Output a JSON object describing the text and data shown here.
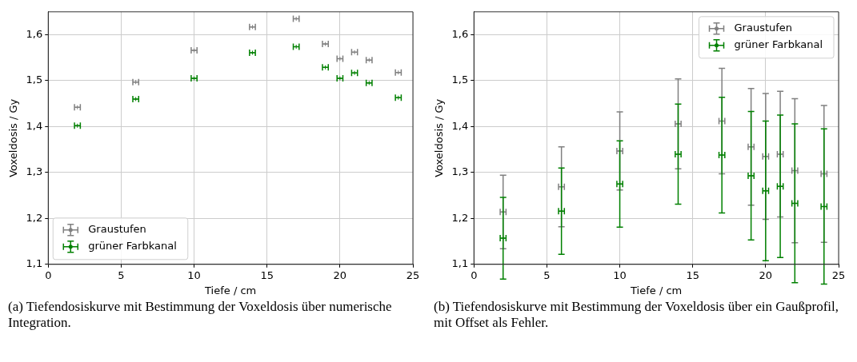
{
  "chart_data": [
    {
      "type": "scatter",
      "xlabel": "Tiefe / cm",
      "ylabel": "Voxeldosis / Gy",
      "x": [
        2,
        6,
        10,
        14,
        17,
        19,
        20,
        21,
        22,
        24
      ],
      "series": [
        {
          "name": "Graustufen",
          "color": "#808080",
          "values": [
            1.442,
            1.497,
            1.566,
            1.617,
            1.635,
            1.58,
            1.548,
            1.562,
            1.545,
            1.518
          ],
          "xerrors": [
            0.2,
            0.2,
            0.2,
            0.2,
            0.2,
            0.2,
            0.2,
            0.2,
            0.2,
            0.2
          ]
        },
        {
          "name": "grüner Farbkanal",
          "color": "#008000",
          "values": [
            1.402,
            1.46,
            1.505,
            1.561,
            1.574,
            1.529,
            1.505,
            1.517,
            1.495,
            1.463
          ],
          "xerrors": [
            0.2,
            0.2,
            0.2,
            0.2,
            0.2,
            0.2,
            0.2,
            0.2,
            0.2,
            0.2
          ]
        }
      ],
      "xlim": [
        0,
        25
      ],
      "xticks": [
        0,
        5,
        10,
        15,
        20,
        25
      ],
      "ylim": [
        1.1,
        1.65
      ],
      "yticks": [
        {
          "value": 1.1,
          "label": "1,1"
        },
        {
          "value": 1.2,
          "label": "1,2"
        },
        {
          "value": 1.3,
          "label": "1,3"
        },
        {
          "value": 1.4,
          "label": "1,4"
        },
        {
          "value": 1.5,
          "label": "1,5"
        },
        {
          "value": 1.6,
          "label": "1,6"
        }
      ],
      "grid": true,
      "legend": "bottom left",
      "marker": "cross",
      "annotations": [
        "(a) Tiefendosiskurve mit Bestimmung der Voxeldosis über numerische Integration."
      ]
    },
    {
      "type": "scatter",
      "xlabel": "Tiefe / cm",
      "ylabel": "Voxeldosis / Gy",
      "x": [
        2,
        6,
        10,
        14,
        17,
        19,
        20,
        21,
        22,
        24
      ],
      "series": [
        {
          "name": "Graustufen",
          "color": "#808080",
          "values": [
            1.214,
            1.269,
            1.347,
            1.406,
            1.412,
            1.356,
            1.335,
            1.34,
            1.304,
            1.297
          ],
          "errors": [
            0.08,
            0.087,
            0.085,
            0.098,
            0.115,
            0.127,
            0.137,
            0.137,
            0.157,
            0.149
          ],
          "xerrors": [
            0.2,
            0.2,
            0.2,
            0.2,
            0.2,
            0.2,
            0.2,
            0.2,
            0.2,
            0.2
          ]
        },
        {
          "name": "grüner Farbkanal",
          "color": "#008000",
          "values": [
            1.157,
            1.216,
            1.275,
            1.34,
            1.338,
            1.293,
            1.26,
            1.27,
            1.233,
            1.226
          ],
          "errors": [
            0.089,
            0.094,
            0.094,
            0.109,
            0.126,
            0.14,
            0.152,
            0.155,
            0.173,
            0.169
          ],
          "xerrors": [
            0.2,
            0.2,
            0.2,
            0.2,
            0.2,
            0.2,
            0.2,
            0.2,
            0.2,
            0.2
          ]
        }
      ],
      "xlim": [
        0,
        25
      ],
      "xticks": [
        0,
        5,
        10,
        15,
        20,
        25
      ],
      "ylim": [
        1.1,
        1.65
      ],
      "yticks": [
        {
          "value": 1.1,
          "label": "1,1"
        },
        {
          "value": 1.2,
          "label": "1,2"
        },
        {
          "value": 1.3,
          "label": "1,3"
        },
        {
          "value": 1.4,
          "label": "1,4"
        },
        {
          "value": 1.5,
          "label": "1,5"
        },
        {
          "value": 1.6,
          "label": "1,6"
        }
      ],
      "grid": true,
      "legend": "top right",
      "marker": "cross",
      "annotations": [
        "(b) Tiefendosiskurve mit Bestimmung der Voxeldosis über ein Gaußprofil, mit Offset als Fehler."
      ]
    }
  ]
}
